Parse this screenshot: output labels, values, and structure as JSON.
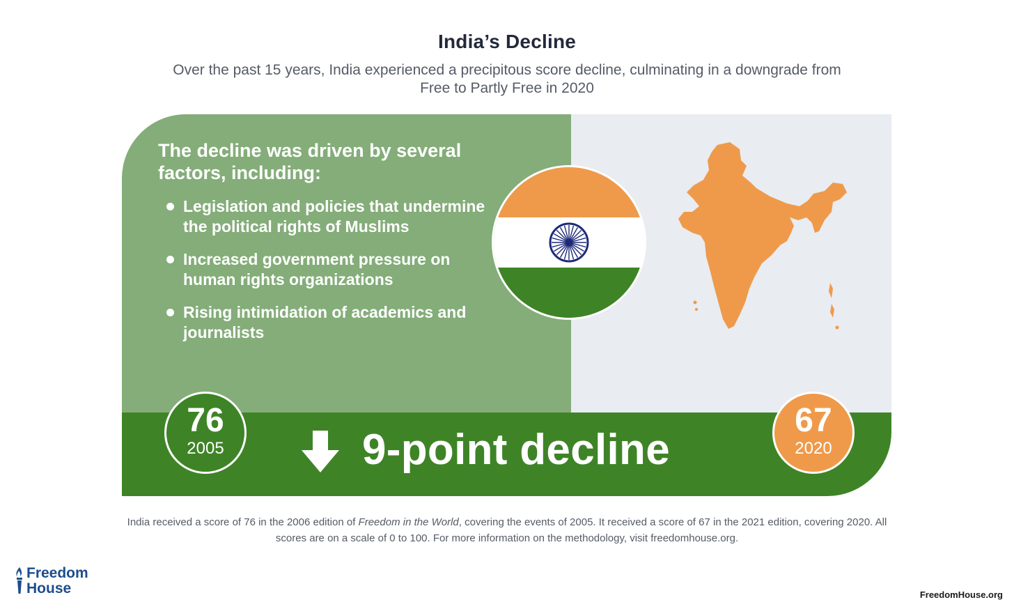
{
  "header": {
    "title": "India’s Decline",
    "subtitle": "Over the past 15 years, India experienced a precipitous score decline, culminating in a downgrade from Free to Partly Free in 2020"
  },
  "factors": {
    "heading": "The decline was driven by several factors, including:",
    "items": [
      "Legislation and policies that undermine the political rights of Muslims",
      "Increased government pressure on human rights organizations",
      "Rising intimidation of academics and journalists"
    ]
  },
  "scores": {
    "start": {
      "value": "76",
      "year": "2005"
    },
    "end": {
      "value": "67",
      "year": "2020"
    },
    "decline_label": "9-point decline"
  },
  "footnote": {
    "before_italic": "India received a score of 76 in the 2006 edition of ",
    "italic": "Freedom in the World",
    "after_italic": ", covering the events of 2005. It received a score of 67 in the 2021 edition, covering 2020. All scores are on a scale of 0 to 100. For more information on the methodology, visit freedomhouse.org."
  },
  "brand": {
    "logo_line1": "Freedom",
    "logo_line2": "House",
    "site": "FreedomHouse.org"
  },
  "icons": {
    "flag": "india-flag-icon",
    "map": "india-map-icon",
    "arrow": "arrow-down-icon",
    "torch": "torch-icon"
  },
  "colors": {
    "green_light": "#84ad79",
    "green_dark": "#3e8427",
    "saffron": "#ef9a4a",
    "gray_panel": "#e9ecf1",
    "navy": "#1c4d8e"
  }
}
